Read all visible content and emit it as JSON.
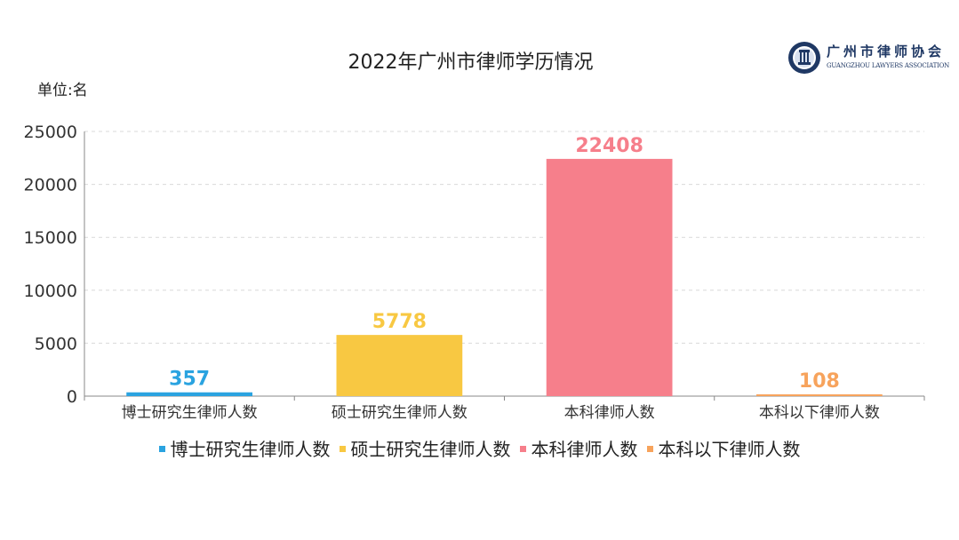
{
  "chart_data": {
    "type": "bar",
    "title": "2022年广州市律师学历情况",
    "unit_label": "单位:名",
    "categories": [
      "博士研究生律师人数",
      "硕士研究生律师人数",
      "本科律师人数",
      "本科以下律师人数"
    ],
    "values": [
      357,
      5778,
      22408,
      108
    ],
    "colors": [
      "#2aa3e0",
      "#f8c842",
      "#f67f8b",
      "#f7a35c"
    ],
    "ylim": [
      0,
      25000
    ],
    "yticks": [
      0,
      5000,
      10000,
      15000,
      20000,
      25000
    ],
    "grid": true,
    "legend_position": "bottom",
    "legend": [
      "博士研究生律师人数",
      "硕士研究生律师人数",
      "本科律师人数",
      "本科以下律师人数"
    ]
  },
  "logo": {
    "name": "广州市律师协会",
    "english": "GUANGZHOU LAWYERS ASSOCIATION",
    "seal_text": "广州市律师协会"
  }
}
